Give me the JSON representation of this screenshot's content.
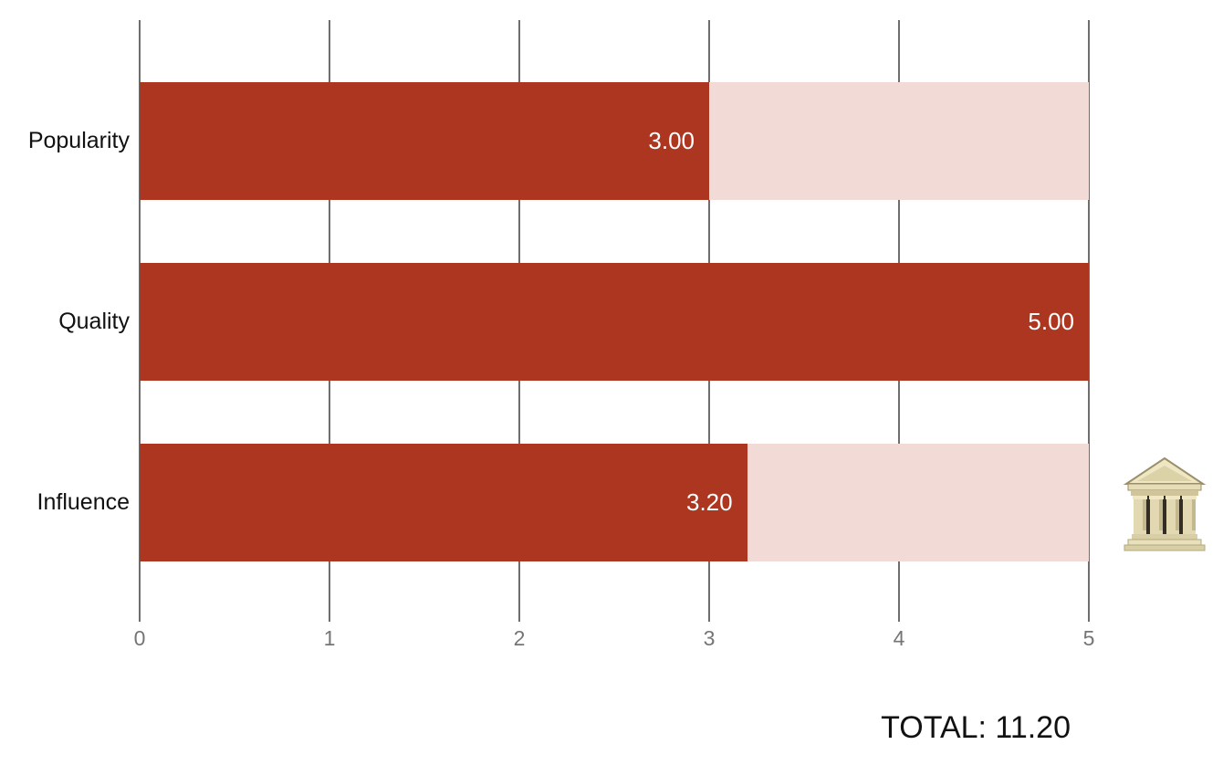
{
  "chart_data": {
    "type": "bar",
    "orientation": "horizontal",
    "title": "",
    "categories": [
      "Popularity",
      "Quality",
      "Influence"
    ],
    "values": [
      3.0,
      5.0,
      3.2
    ],
    "value_labels": [
      "3.00",
      "5.00",
      "3.20"
    ],
    "xlim": [
      0,
      5
    ],
    "x_ticks": [
      0,
      1,
      2,
      3,
      4,
      5
    ],
    "x_tick_labels": [
      "0",
      "1",
      "2",
      "3",
      "4",
      "5"
    ],
    "grid": true,
    "legend": "none",
    "bar_color": "#AC361F",
    "track_color": "#F2DBD6",
    "grid_color": "#6E6E6E",
    "tick_text_color": "#757575",
    "category_text_color": "#111111",
    "value_text_color": "#FFFFFF"
  },
  "total": {
    "label": "TOTAL: 11.20"
  },
  "icons": {
    "building": "classical-building"
  }
}
